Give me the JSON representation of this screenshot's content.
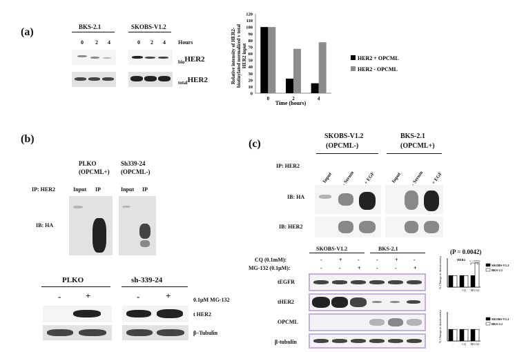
{
  "panel_a": {
    "label": "(a)",
    "cell_left": "BKS-2.1",
    "cell_right": "SKOBS-V1.2",
    "hours_label": "Hours",
    "hours": [
      "0",
      "2",
      "4",
      "0",
      "2",
      "4"
    ],
    "row_bio_sub": "bio",
    "row_bio": "HER2",
    "row_total_sub": "total",
    "row_total": "HER2",
    "chart_data": {
      "type": "bar",
      "categories": [
        "0",
        "2",
        "4"
      ],
      "series": [
        {
          "name": "HER2 + OPCML",
          "values": [
            100,
            22,
            15
          ],
          "color": "#000000"
        },
        {
          "name": "HER2 - OPCML",
          "values": [
            100,
            67,
            77
          ],
          "color": "#8c8c8c"
        }
      ],
      "xlabel": "Time (hours)",
      "ylabel_lines": [
        "Relative intensity of HER2-",
        "biotinylated normalized v total",
        "HER2 input"
      ],
      "ylim": [
        0,
        120
      ],
      "yticks": [
        "0",
        "10",
        "20",
        "30",
        "40",
        "50",
        "60",
        "70",
        "80",
        "90",
        "100",
        "110",
        "120"
      ],
      "legend_position": "right"
    }
  },
  "panel_b": {
    "label": "(b)",
    "col1_name": "PLKO",
    "col1_status": "(OPCML+)",
    "col2_name": "Sh339-24",
    "col2_status": "(OPCML-)",
    "ip_label": "IP: HER2",
    "lane_labels": [
      "Input",
      "IP",
      "Input",
      "IP"
    ],
    "ib_label": "IB: HA",
    "lower_left_header": "PLKO",
    "lower_right_header": "sh-339-24",
    "signs": [
      "-",
      "+",
      "-",
      "+"
    ],
    "treatment": "0.1µM MG-132",
    "row1": "t HER2",
    "row2": "β–Tubulin"
  },
  "panel_c": {
    "label": "(c)",
    "col1_name": "SKOBS-V1.2",
    "col1_status": "(OPCML-)",
    "col2_name": "BKS-2.1",
    "col2_status": "(OPCML+)",
    "ip_label": "IP: HER2",
    "lane_labels": [
      "Input",
      "- Serum",
      "+ EGF",
      "Input",
      "- Serum",
      "+ EGF"
    ],
    "ib1": "IB: HA",
    "ib2": "IB: HER2",
    "lower_col1": "SKOBS-V1.2",
    "lower_col2": "BKS-2.1",
    "cq_label": "CQ (0.1mM):",
    "mg_label": "MG-132 (0.1µM):",
    "cq_signs": [
      "-",
      "+",
      "-",
      "-",
      "+",
      "-"
    ],
    "mg_signs": [
      "-",
      "-",
      "+",
      "-",
      "-",
      "+"
    ],
    "rows": [
      "tEGFR",
      "tHER2",
      "OPCML",
      "β-tubulin"
    ],
    "pvalue": "(P = 0.0042)",
    "chart_top": {
      "type": "bar",
      "title": "HER2",
      "categories": [
        "-",
        "CQ",
        "MG132"
      ],
      "series": [
        {
          "name": "SKOBS-V1.2",
          "values": [
            100,
            100,
            100
          ],
          "color": "#000000"
        },
        {
          "name": "BKS-2.1",
          "values": [
            100,
            100,
            210
          ],
          "color": "#ffffff"
        }
      ],
      "ylabel": "% Change in densitometry",
      "annotation": "p = 0.0042"
    },
    "chart_bottom": {
      "type": "bar",
      "categories": [
        "-",
        "CQ",
        "MG132"
      ],
      "series": [
        {
          "name": "SKOBS-V1.2",
          "values": [
            100,
            100,
            100
          ],
          "color": "#000000"
        },
        {
          "name": "BKS-2.1",
          "values": [
            100,
            100,
            100
          ],
          "color": "#ffffff"
        }
      ],
      "ylabel": "% Change in densitometry"
    }
  }
}
